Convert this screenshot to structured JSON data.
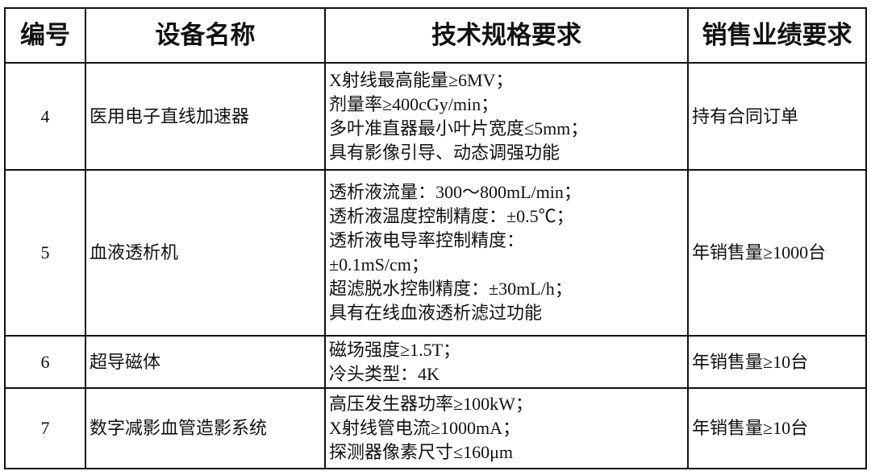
{
  "headers": [
    "编号",
    "设备名称",
    "技术规格要求",
    "销售业绩要求"
  ],
  "rows": [
    {
      "no": "4",
      "name": "医用电子直线加速器",
      "specs": [
        "X射线最高能量≥6MV；",
        "剂量率≥400cGy/min；",
        "多叶准直器最小叶片宽度≤5mm；",
        "具有影像引导、动态调强功能"
      ],
      "sales": "持有合同订单"
    },
    {
      "no": "5",
      "name": "血液透析机",
      "specs": [
        "透析液流量：300～800mL/min；",
        "透析液温度控制精度：±0.5℃；",
        "透析液电导率控制精度：",
        "±0.1mS/cm；",
        "超滤脱水控制精度：±30mL/h；",
        "具有在线血液透析滤过功能"
      ],
      "sales": "年销售量≥1000台"
    },
    {
      "no": "6",
      "name": "超导磁体",
      "specs": [
        "磁场强度≥1.5T；",
        "冷头类型：4K"
      ],
      "sales": "年销售量≥10台"
    },
    {
      "no": "7",
      "name": "数字减影血管造影系统",
      "specs": [
        "高压发生器功率≥100kW；",
        "X射线管电流≥1000mA；",
        "探测器像素尺寸≤160μm"
      ],
      "sales": "年销售量≥10台"
    }
  ]
}
